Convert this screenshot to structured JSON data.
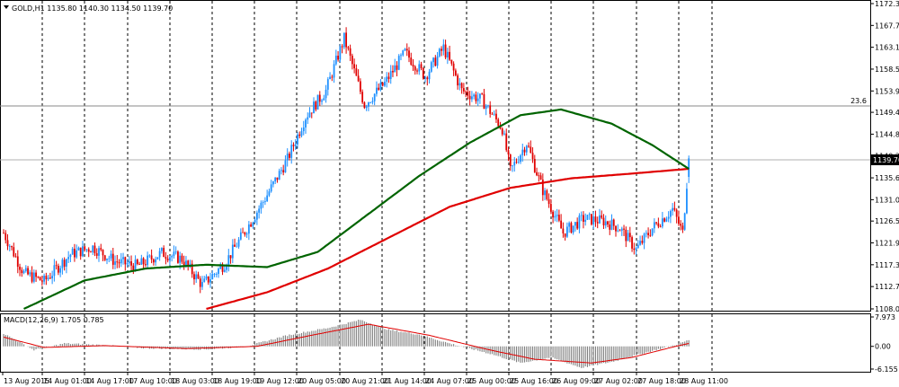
{
  "header": {
    "menu_icon": "triangle-down-icon",
    "main_title": "GOLD,H1  1135.80 1140.30 1134.50 1139.70",
    "macd_title": "MACD(12,26,9) 1.705 0.785"
  },
  "price_axis": {
    "ticks": [
      "1172.30",
      "1167.70",
      "1163.10",
      "1158.50",
      "1153.90",
      "1149.40",
      "1144.80",
      "1140.20",
      "1135.60",
      "1131.00",
      "1126.50",
      "1121.90",
      "1117.30",
      "1112.70",
      "1108.00"
    ],
    "current_price": "1139.70",
    "fib_label": "23.6"
  },
  "macd_axis": {
    "ticks": [
      "7.973",
      "0.00",
      "-6.155"
    ]
  },
  "time_axis": {
    "labels": [
      "13 Aug 2015",
      "14 Aug 01:00",
      "14 Aug 17:00",
      "17 Aug 10:00",
      "18 Aug 03:00",
      "18 Aug 19:00",
      "19 Aug 12:00",
      "20 Aug 05:00",
      "20 Aug 21:00",
      "21 Aug 14:00",
      "24 Aug 07:00",
      "25 Aug 00:00",
      "25 Aug 16:00",
      "26 Aug 09:00",
      "27 Aug 02:00",
      "27 Aug 18:00",
      "28 Aug 11:00"
    ]
  },
  "colors": {
    "bull_candle": "#1e90ff",
    "bear_candle": "#e00000",
    "ma_slow": "#e00000",
    "ma_fast": "#006400",
    "macd_hist": "#808080",
    "macd_signal": "#e00000",
    "grid": "#000000",
    "background": "#ffffff"
  },
  "chart_data": {
    "type": "candlestick",
    "symbol": "GOLD",
    "timeframe": "H1",
    "last_bar": {
      "open": 1135.8,
      "high": 1140.3,
      "low": 1134.5,
      "close": 1139.7
    },
    "ylim": [
      1108.0,
      1172.3
    ],
    "price_keypoints": [
      {
        "bar": 0,
        "price": 1124.0
      },
      {
        "bar": 10,
        "price": 1115.5
      },
      {
        "bar": 20,
        "price": 1113.8
      },
      {
        "bar": 33,
        "price": 1119.5
      },
      {
        "bar": 44,
        "price": 1121.0
      },
      {
        "bar": 55,
        "price": 1118.0
      },
      {
        "bar": 66,
        "price": 1117.0
      },
      {
        "bar": 78,
        "price": 1119.8
      },
      {
        "bar": 88,
        "price": 1118.5
      },
      {
        "bar": 98,
        "price": 1113.0
      },
      {
        "bar": 109,
        "price": 1117.5
      },
      {
        "bar": 120,
        "price": 1125.0
      },
      {
        "bar": 130,
        "price": 1132.0
      },
      {
        "bar": 140,
        "price": 1139.5
      },
      {
        "bar": 149,
        "price": 1148.5
      },
      {
        "bar": 159,
        "price": 1154.0
      },
      {
        "bar": 168,
        "price": 1165.0
      },
      {
        "bar": 178,
        "price": 1151.0
      },
      {
        "bar": 188,
        "price": 1155.5
      },
      {
        "bar": 198,
        "price": 1162.0
      },
      {
        "bar": 208,
        "price": 1157.0
      },
      {
        "bar": 217,
        "price": 1163.0
      },
      {
        "bar": 226,
        "price": 1154.0
      },
      {
        "bar": 236,
        "price": 1152.0
      },
      {
        "bar": 246,
        "price": 1146.0
      },
      {
        "bar": 250,
        "price": 1137.0
      },
      {
        "bar": 258,
        "price": 1143.0
      },
      {
        "bar": 266,
        "price": 1133.0
      },
      {
        "bar": 276,
        "price": 1124.0
      },
      {
        "bar": 286,
        "price": 1127.0
      },
      {
        "bar": 296,
        "price": 1126.5
      },
      {
        "bar": 304,
        "price": 1125.0
      },
      {
        "bar": 312,
        "price": 1120.5
      },
      {
        "bar": 320,
        "price": 1125.0
      },
      {
        "bar": 330,
        "price": 1129.0
      },
      {
        "bar": 335,
        "price": 1124.0
      },
      {
        "bar": 338,
        "price": 1139.7
      }
    ],
    "ma_fast_keypoints": [
      {
        "bar": 10,
        "price": 1108.0
      },
      {
        "bar": 40,
        "price": 1114.0
      },
      {
        "bar": 70,
        "price": 1116.5
      },
      {
        "bar": 100,
        "price": 1117.3
      },
      {
        "bar": 130,
        "price": 1116.8
      },
      {
        "bar": 155,
        "price": 1120.0
      },
      {
        "bar": 180,
        "price": 1128.0
      },
      {
        "bar": 205,
        "price": 1136.0
      },
      {
        "bar": 230,
        "price": 1143.0
      },
      {
        "bar": 255,
        "price": 1148.8
      },
      {
        "bar": 275,
        "price": 1150.0
      },
      {
        "bar": 300,
        "price": 1147.0
      },
      {
        "bar": 320,
        "price": 1142.5
      },
      {
        "bar": 338,
        "price": 1137.5
      }
    ],
    "ma_slow_keypoints": [
      {
        "bar": 100,
        "price": 1108.0
      },
      {
        "bar": 130,
        "price": 1111.5
      },
      {
        "bar": 160,
        "price": 1116.5
      },
      {
        "bar": 190,
        "price": 1123.0
      },
      {
        "bar": 220,
        "price": 1129.5
      },
      {
        "bar": 250,
        "price": 1133.5
      },
      {
        "bar": 280,
        "price": 1135.5
      },
      {
        "bar": 310,
        "price": 1136.5
      },
      {
        "bar": 338,
        "price": 1137.5
      }
    ],
    "macd": {
      "ylim": [
        -6.155,
        7.973
      ],
      "hist_keypoints": [
        {
          "bar": 0,
          "value": 3.5
        },
        {
          "bar": 15,
          "value": -1.0
        },
        {
          "bar": 30,
          "value": 0.8
        },
        {
          "bar": 50,
          "value": 0.3
        },
        {
          "bar": 70,
          "value": -0.5
        },
        {
          "bar": 100,
          "value": -0.8
        },
        {
          "bar": 120,
          "value": 0.0
        },
        {
          "bar": 140,
          "value": 3.0
        },
        {
          "bar": 160,
          "value": 5.0
        },
        {
          "bar": 176,
          "value": 7.2
        },
        {
          "bar": 190,
          "value": 4.5
        },
        {
          "bar": 205,
          "value": 3.2
        },
        {
          "bar": 220,
          "value": 0.8
        },
        {
          "bar": 240,
          "value": -2.0
        },
        {
          "bar": 255,
          "value": -4.5
        },
        {
          "bar": 270,
          "value": -3.0
        },
        {
          "bar": 285,
          "value": -5.8
        },
        {
          "bar": 300,
          "value": -4.2
        },
        {
          "bar": 318,
          "value": -1.5
        },
        {
          "bar": 332,
          "value": 0.5
        },
        {
          "bar": 338,
          "value": 1.705
        }
      ],
      "signal_keypoints": [
        {
          "bar": 0,
          "value": 2.5
        },
        {
          "bar": 20,
          "value": -0.3
        },
        {
          "bar": 50,
          "value": 0.2
        },
        {
          "bar": 90,
          "value": -0.6
        },
        {
          "bar": 125,
          "value": 0.0
        },
        {
          "bar": 150,
          "value": 2.8
        },
        {
          "bar": 180,
          "value": 6.0
        },
        {
          "bar": 210,
          "value": 3.0
        },
        {
          "bar": 240,
          "value": -1.0
        },
        {
          "bar": 262,
          "value": -3.5
        },
        {
          "bar": 290,
          "value": -4.5
        },
        {
          "bar": 310,
          "value": -3.0
        },
        {
          "bar": 330,
          "value": -0.2
        },
        {
          "bar": 338,
          "value": 0.785
        }
      ]
    }
  }
}
